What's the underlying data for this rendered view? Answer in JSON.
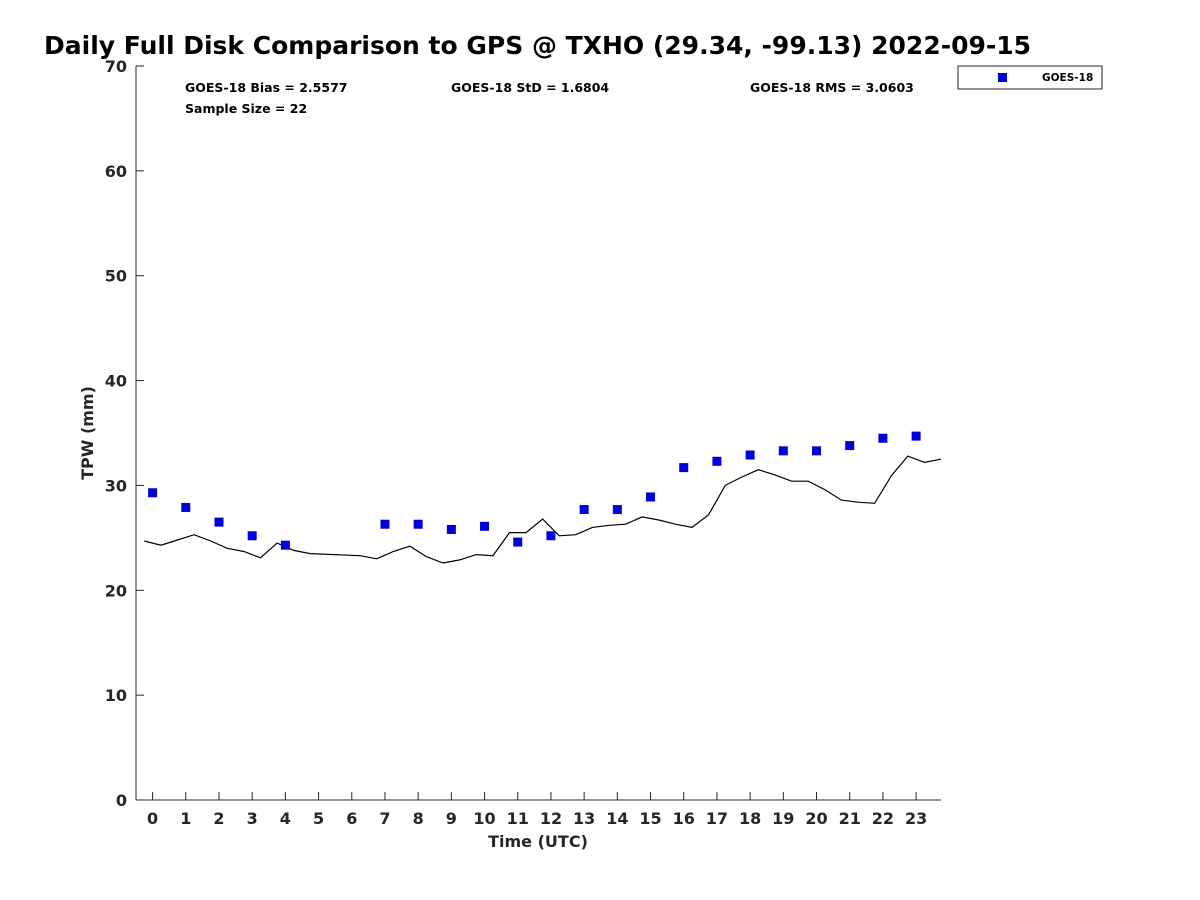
{
  "chart_data": {
    "type": "scatter",
    "title": "Daily Full Disk Comparison to GPS @ TXHO (29.34, -99.13) 2022-09-15",
    "xlabel": "Time (UTC)",
    "ylabel": "TPW (mm)",
    "xlim": [
      -0.5,
      23.75
    ],
    "ylim": [
      0,
      70
    ],
    "x_ticks": [
      "0",
      "1",
      "2",
      "3",
      "4",
      "5",
      "6",
      "7",
      "8",
      "9",
      "10",
      "11",
      "12",
      "13",
      "14",
      "15",
      "16",
      "17",
      "18",
      "19",
      "20",
      "21",
      "22",
      "23"
    ],
    "y_ticks": [
      "0",
      "10",
      "20",
      "30",
      "40",
      "50",
      "60",
      "70"
    ],
    "grid": false,
    "legend_position": "top-right, outside plot",
    "stats": {
      "bias": "GOES-18 Bias = 2.5577",
      "std": "GOES-18 StD = 1.6804",
      "rms": "GOES-18 RMS = 3.0603",
      "sample": "Sample Size = 22"
    },
    "series": [
      {
        "name": "GOES-18",
        "kind": "scatter",
        "marker": "square",
        "color": "#0000dd",
        "points": [
          [
            0,
            29.3
          ],
          [
            1,
            27.9
          ],
          [
            2,
            26.5
          ],
          [
            3,
            25.2
          ],
          [
            4,
            24.3
          ],
          [
            7,
            26.3
          ],
          [
            8,
            26.3
          ],
          [
            9,
            25.8
          ],
          [
            10,
            26.1
          ],
          [
            11,
            24.6
          ],
          [
            12,
            25.2
          ],
          [
            13,
            27.7
          ],
          [
            14,
            27.7
          ],
          [
            15,
            28.9
          ],
          [
            16,
            31.7
          ],
          [
            17,
            32.3
          ],
          [
            18,
            32.9
          ],
          [
            19,
            33.3
          ],
          [
            20,
            33.3
          ],
          [
            21,
            33.8
          ],
          [
            22,
            34.5
          ],
          [
            23,
            34.7
          ]
        ]
      },
      {
        "kind": "line",
        "color": "#000000",
        "points": [
          [
            -0.25,
            24.7
          ],
          [
            0.25,
            24.3
          ],
          [
            0.75,
            24.8
          ],
          [
            1.25,
            25.3
          ],
          [
            1.75,
            24.7
          ],
          [
            2.25,
            24.0
          ],
          [
            2.75,
            23.7
          ],
          [
            3.25,
            23.1
          ],
          [
            3.75,
            24.5
          ],
          [
            4.25,
            23.8
          ],
          [
            4.75,
            23.5
          ],
          [
            6.25,
            23.3
          ],
          [
            6.75,
            23.0
          ],
          [
            7.25,
            23.7
          ],
          [
            7.75,
            24.2
          ],
          [
            8.25,
            23.2
          ],
          [
            8.75,
            22.6
          ],
          [
            9.25,
            22.9
          ],
          [
            9.75,
            23.4
          ],
          [
            10.25,
            23.3
          ],
          [
            10.75,
            25.5
          ],
          [
            11.25,
            25.5
          ],
          [
            11.75,
            26.8
          ],
          [
            12.25,
            25.2
          ],
          [
            12.75,
            25.3
          ],
          [
            13.25,
            26.0
          ],
          [
            13.75,
            26.2
          ],
          [
            14.25,
            26.3
          ],
          [
            14.75,
            27.0
          ],
          [
            15.25,
            26.7
          ],
          [
            15.75,
            26.3
          ],
          [
            16.25,
            26.0
          ],
          [
            16.75,
            27.2
          ],
          [
            17.25,
            30.0
          ],
          [
            17.75,
            30.8
          ],
          [
            18.25,
            31.5
          ],
          [
            18.75,
            31.0
          ],
          [
            19.25,
            30.4
          ],
          [
            19.75,
            30.4
          ],
          [
            20.25,
            29.6
          ],
          [
            20.75,
            28.6
          ],
          [
            21.25,
            28.4
          ],
          [
            21.75,
            28.3
          ],
          [
            22.25,
            30.9
          ],
          [
            22.75,
            32.8
          ],
          [
            23.25,
            32.2
          ],
          [
            23.75,
            32.5
          ]
        ]
      }
    ]
  }
}
